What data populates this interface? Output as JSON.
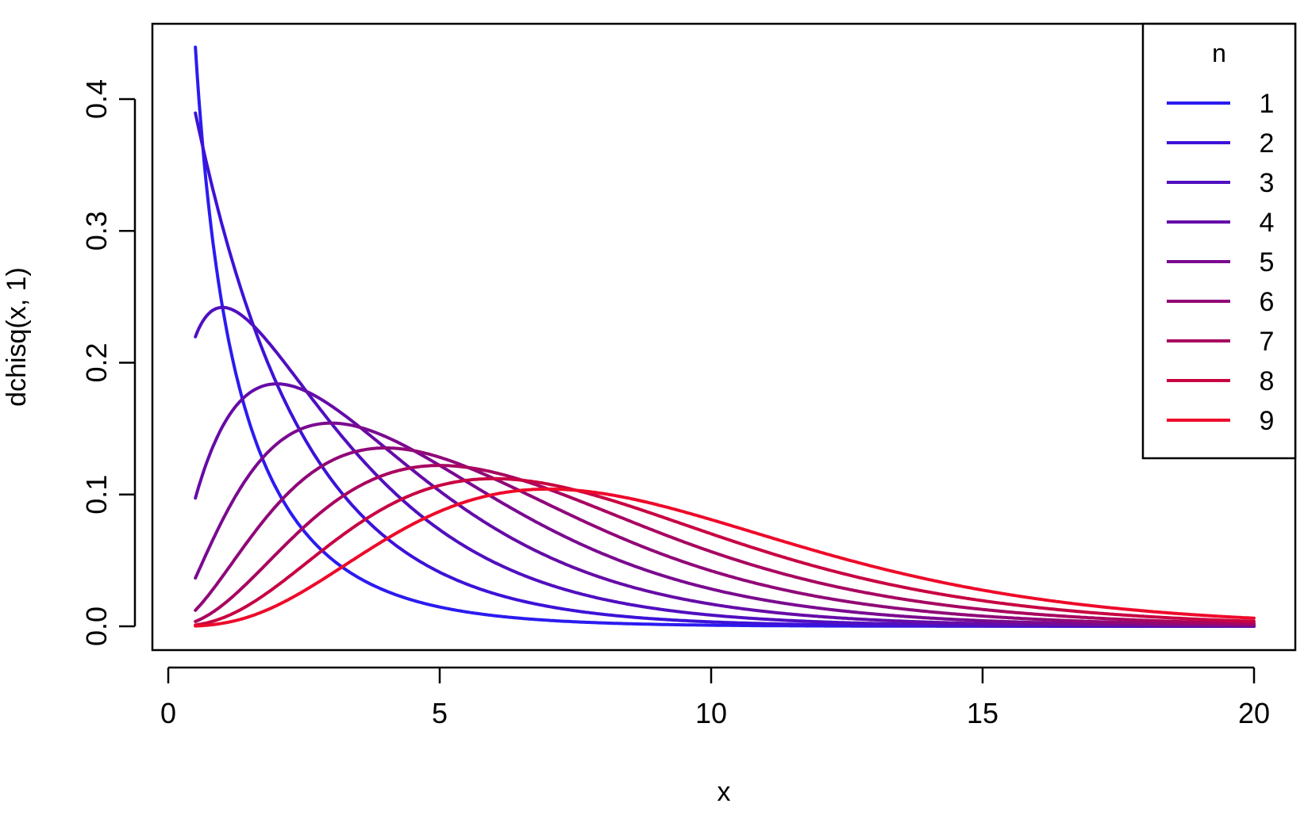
{
  "chart_data": {
    "type": "line",
    "title": "",
    "xlabel": "x",
    "ylabel": "dchisq(x, 1)",
    "xlim": [
      0,
      20
    ],
    "ylim": [
      0,
      0.44
    ],
    "x_ticks": [
      0,
      5,
      10,
      15,
      20
    ],
    "x_tick_labels": [
      "0",
      "5",
      "10",
      "15",
      "20"
    ],
    "y_ticks": [
      0,
      0.1,
      0.2,
      0.3,
      0.4
    ],
    "y_tick_labels": [
      "0.0",
      "0.1",
      "0.2",
      "0.3",
      "0.4"
    ],
    "x_range": [
      0.5,
      20
    ],
    "grid": false,
    "legend": {
      "title": "n",
      "placement": "top-right",
      "entries": [
        "1",
        "2",
        "3",
        "4",
        "5",
        "6",
        "7",
        "8",
        "9"
      ]
    },
    "series": [
      {
        "name": "1",
        "df": 1,
        "color": "#2b1bf0",
        "x": [
          0.5,
          1,
          2,
          3,
          4,
          5,
          7,
          10,
          15,
          20
        ],
        "y": [
          0.439,
          0.242,
          0.104,
          0.051,
          0.027,
          0.015,
          0.005,
          0.001,
          0.0,
          0.0
        ]
      },
      {
        "name": "2",
        "df": 2,
        "color": "#3d12d8",
        "x": [
          0.5,
          1,
          2,
          3,
          4,
          5,
          7,
          10,
          15,
          20
        ],
        "y": [
          0.389,
          0.303,
          0.184,
          0.112,
          0.068,
          0.041,
          0.015,
          0.003,
          0.0,
          0.0
        ]
      },
      {
        "name": "3",
        "df": 3,
        "color": "#500fc0",
        "x": [
          0.5,
          1,
          2,
          3,
          4,
          5,
          7,
          10,
          15,
          20
        ],
        "y": [
          0.22,
          0.242,
          0.208,
          0.154,
          0.108,
          0.073,
          0.032,
          0.008,
          0.001,
          0.0
        ]
      },
      {
        "name": "4",
        "df": 4,
        "color": "#650ca8",
        "x": [
          0.5,
          1,
          2,
          3,
          4,
          5,
          7,
          10,
          15,
          20
        ],
        "y": [
          0.097,
          0.152,
          0.184,
          0.167,
          0.135,
          0.103,
          0.053,
          0.017,
          0.002,
          0.0
        ]
      },
      {
        "name": "5",
        "df": 5,
        "color": "#7a0a90",
        "x": [
          0.5,
          1,
          2,
          3,
          4,
          5,
          7,
          10,
          15,
          20
        ],
        "y": [
          0.037,
          0.081,
          0.138,
          0.154,
          0.144,
          0.122,
          0.075,
          0.028,
          0.004,
          0.001
        ]
      },
      {
        "name": "6",
        "df": 6,
        "color": "#900878",
        "x": [
          0.5,
          1,
          2,
          3,
          4,
          5,
          7,
          10,
          15,
          20
        ],
        "y": [
          0.012,
          0.038,
          0.092,
          0.126,
          0.135,
          0.128,
          0.094,
          0.042,
          0.008,
          0.001
        ]
      },
      {
        "name": "7",
        "df": 7,
        "color": "#a80560",
        "x": [
          0.5,
          1,
          2,
          3,
          4,
          5,
          7,
          10,
          15,
          20
        ],
        "y": [
          0.004,
          0.016,
          0.055,
          0.092,
          0.114,
          0.122,
          0.107,
          0.056,
          0.012,
          0.002
        ]
      },
      {
        "name": "8",
        "df": 8,
        "color": "#c80342",
        "x": [
          0.5,
          1,
          2,
          3,
          4,
          5,
          7,
          10,
          15,
          20
        ],
        "y": [
          0.001,
          0.006,
          0.031,
          0.063,
          0.09,
          0.107,
          0.111,
          0.067,
          0.017,
          0.003
        ]
      },
      {
        "name": "9",
        "df": 9,
        "color": "#ee0a2a",
        "x": [
          0.5,
          1,
          2,
          3,
          4,
          5,
          7,
          10,
          15,
          20
        ],
        "y": [
          0.0,
          0.002,
          0.016,
          0.039,
          0.066,
          0.087,
          0.104,
          0.075,
          0.023,
          0.005
        ]
      }
    ]
  }
}
